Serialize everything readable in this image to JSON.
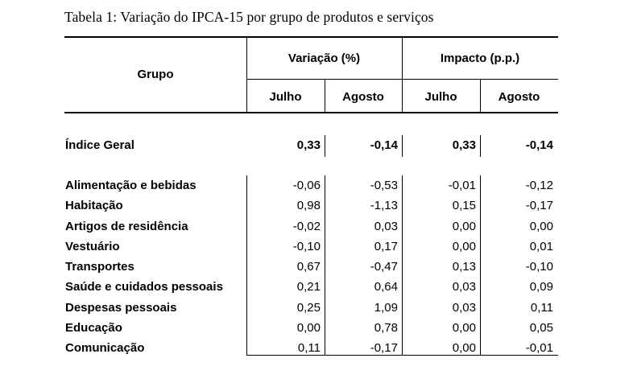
{
  "caption": "Tabela 1: Variação do IPCA-15 por grupo de produtos e serviços",
  "header": {
    "group_label": "Grupo",
    "variacao_label": "Variação (%)",
    "impacto_label": "Impacto (p.p.)",
    "sub_julho_1": "Julho",
    "sub_agosto_1": "Agosto",
    "sub_julho_2": "Julho",
    "sub_agosto_2": "Agosto"
  },
  "indice_geral": {
    "label": "Índice Geral",
    "var_julho": "0,33",
    "var_agosto": "-0,14",
    "imp_julho": "0,33",
    "imp_agosto": "-0,14"
  },
  "rows": [
    {
      "label": "Alimentação e bebidas",
      "var_julho": "-0,06",
      "var_agosto": "-0,53",
      "imp_julho": "-0,01",
      "imp_agosto": "-0,12"
    },
    {
      "label": "Habitação",
      "var_julho": "0,98",
      "var_agosto": "-1,13",
      "imp_julho": "0,15",
      "imp_agosto": "-0,17"
    },
    {
      "label": "Artigos de residência",
      "var_julho": "-0,02",
      "var_agosto": "0,03",
      "imp_julho": "0,00",
      "imp_agosto": "0,00"
    },
    {
      "label": "Vestuário",
      "var_julho": "-0,10",
      "var_agosto": "0,17",
      "imp_julho": "0,00",
      "imp_agosto": "0,01"
    },
    {
      "label": "Transportes",
      "var_julho": "0,67",
      "var_agosto": "-0,47",
      "imp_julho": "0,13",
      "imp_agosto": "-0,10"
    },
    {
      "label": "Saúde e cuidados pessoais",
      "var_julho": "0,21",
      "var_agosto": "0,64",
      "imp_julho": "0,03",
      "imp_agosto": "0,09"
    },
    {
      "label": "Despesas pessoais",
      "var_julho": "0,25",
      "var_agosto": "1,09",
      "imp_julho": "0,03",
      "imp_agosto": "0,11"
    },
    {
      "label": "Educação",
      "var_julho": "0,00",
      "var_agosto": "0,78",
      "imp_julho": "0,00",
      "imp_agosto": "0,05"
    },
    {
      "label": "Comunicação",
      "var_julho": "0,11",
      "var_agosto": "-0,17",
      "imp_julho": "0,00",
      "imp_agosto": "-0,01"
    }
  ]
}
